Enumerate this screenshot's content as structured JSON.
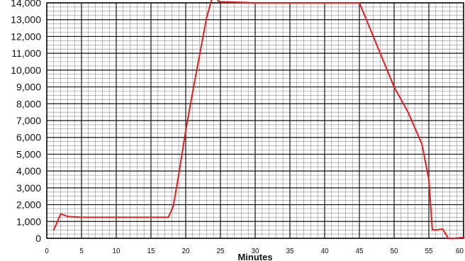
{
  "chart_data": {
    "type": "line",
    "title": "",
    "xlabel": "Minutes",
    "ylabel": "",
    "xlim": [
      0,
      60
    ],
    "ylim": [
      0,
      14000
    ],
    "grid": true,
    "xticks": [
      0,
      5,
      10,
      15,
      20,
      25,
      30,
      35,
      40,
      45,
      50,
      55,
      60
    ],
    "yticks": [
      0,
      1000,
      2000,
      3000,
      4000,
      5000,
      6000,
      7000,
      8000,
      9000,
      10000,
      11000,
      12000,
      13000,
      14000
    ],
    "ytick_labels": [
      "0",
      "1,000",
      "2,000",
      "3,000",
      "4,000",
      "5,000",
      "6,000",
      "7,000",
      "8,000",
      "9,000",
      "10,000",
      "11,000",
      "12,000",
      "13,000",
      "14,000"
    ],
    "series": [
      {
        "color": "#e41e1e",
        "x": [
          1,
          2,
          3,
          5,
          10,
          15,
          17.5,
          18.2,
          19,
          20,
          21,
          22,
          23,
          24,
          24.7,
          25.2,
          26,
          30,
          35,
          40,
          45,
          47,
          50,
          52,
          54,
          55,
          55.5,
          56,
          57,
          57.8,
          58.5,
          60
        ],
        "y": [
          500,
          1450,
          1300,
          1250,
          1250,
          1250,
          1250,
          1900,
          3800,
          6400,
          8700,
          10900,
          13100,
          14600,
          14100,
          14050,
          14050,
          14000,
          14000,
          14000,
          14000,
          12000,
          9000,
          7500,
          5600,
          3500,
          500,
          500,
          550,
          0,
          0,
          50
        ]
      }
    ]
  }
}
